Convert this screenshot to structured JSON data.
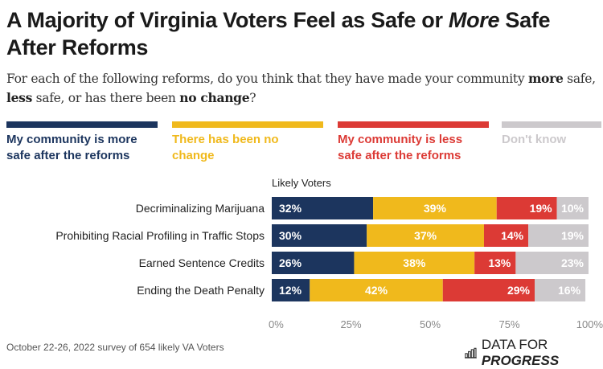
{
  "title_parts": {
    "before": "A Majority of Virginia Voters Feel as Safe or ",
    "italic": "More",
    "after": " Safe After Reforms"
  },
  "subtitle_parts": {
    "p1": "For each of the following reforms, do you think that they have made your community ",
    "b1": "more",
    "p2": " safe, ",
    "b2": "less",
    "p3": " safe, or has there been ",
    "b3": "no change",
    "p4": "?"
  },
  "legend": [
    {
      "label": "My community is more safe after the reforms",
      "color": "#1c355e"
    },
    {
      "label": "There has been no change",
      "color": "#f0b91c"
    },
    {
      "label": "My community is less safe after the reforms",
      "color": "#dc3a35"
    },
    {
      "label": "Don't know",
      "color": "#ccc9cc"
    }
  ],
  "footer": {
    "note": "October 22-26, 2022 survey of 654 likely VA Voters",
    "brand_regular": "DATA FOR ",
    "brand_bold": "PROGRESS",
    "brand_icon": "bar-chart-icon"
  },
  "chart_data": {
    "type": "bar",
    "orientation": "horizontal",
    "stacked": true,
    "title": "A Majority of Virginia Voters Feel as Safe or More Safe After Reforms",
    "group_label": "Likely Voters",
    "categories": [
      "Decriminalizing Marijuana",
      "Prohibiting Racial Profiling in Traffic Stops",
      "Earned Sentence Credits",
      "Ending the Death Penalty"
    ],
    "series": [
      {
        "name": "My community is more safe after the reforms",
        "color": "#1c355e",
        "values": [
          32,
          30,
          26,
          12
        ],
        "label_align": "left"
      },
      {
        "name": "There has been no change",
        "color": "#f0b91c",
        "values": [
          39,
          37,
          38,
          42
        ],
        "label_align": "center"
      },
      {
        "name": "My community is less safe after the reforms",
        "color": "#dc3a35",
        "values": [
          19,
          14,
          13,
          29
        ],
        "label_align": "right"
      },
      {
        "name": "Don't know",
        "color": "#ccc9cc",
        "values": [
          10,
          19,
          23,
          16
        ],
        "label_align": "right"
      }
    ],
    "xlim": [
      0,
      100
    ],
    "xticks": [
      "0%",
      "25%",
      "50%",
      "75%",
      "100%"
    ],
    "xtick_values": [
      0,
      25,
      50,
      75,
      100
    ],
    "value_suffix": "%",
    "grid": false,
    "legend_position": "top"
  }
}
